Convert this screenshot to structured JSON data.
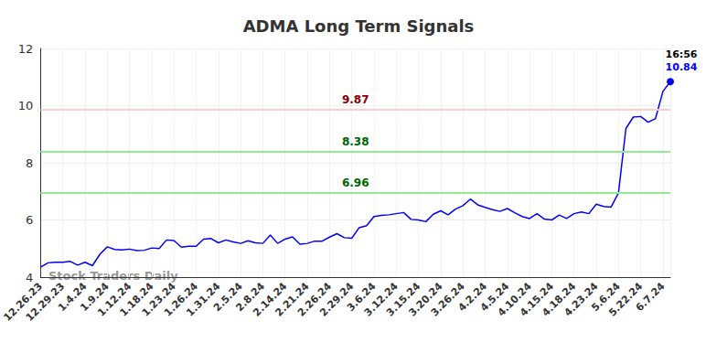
{
  "chart_data": {
    "type": "line",
    "title": "ADMA Long Term Signals",
    "watermark": "Stock Traders Daily",
    "last_point_time": "16:56",
    "categories": [
      "12.26.23",
      null,
      null,
      "12.29.23",
      null,
      null,
      "1.4.24",
      null,
      null,
      "1.9.24",
      null,
      null,
      "1.12.24",
      null,
      null,
      "1.18.24",
      null,
      null,
      "1.23.24",
      null,
      null,
      "1.26.24",
      null,
      null,
      "1.31.24",
      null,
      null,
      "2.5.24",
      null,
      null,
      "2.8.24",
      null,
      null,
      "2.14.24",
      null,
      null,
      "2.21.24",
      null,
      null,
      "2.26.24",
      null,
      null,
      "2.29.24",
      null,
      null,
      "3.6.24",
      null,
      null,
      "3.12.24",
      null,
      null,
      "3.15.24",
      null,
      null,
      "3.20.24",
      null,
      null,
      "3.26.24",
      null,
      null,
      "4.2.24",
      null,
      null,
      "4.5.24",
      null,
      null,
      "4.10.24",
      null,
      null,
      "4.15.24",
      null,
      null,
      "4.18.24",
      null,
      null,
      "4.23.24",
      null,
      null,
      "5.6.24",
      null,
      null,
      "5.22.24",
      null,
      null,
      "6.7.24",
      null
    ],
    "values": [
      4.35,
      4.5,
      4.52,
      4.52,
      4.55,
      4.42,
      4.52,
      4.4,
      4.8,
      5.06,
      4.97,
      4.95,
      4.98,
      4.93,
      4.94,
      5.02,
      5.0,
      5.3,
      5.28,
      5.05,
      5.08,
      5.08,
      5.33,
      5.35,
      5.2,
      5.3,
      5.23,
      5.18,
      5.27,
      5.2,
      5.18,
      5.47,
      5.18,
      5.33,
      5.41,
      5.15,
      5.18,
      5.26,
      5.26,
      5.4,
      5.52,
      5.38,
      5.36,
      5.73,
      5.8,
      6.12,
      6.16,
      6.18,
      6.22,
      6.26,
      6.02,
      6.0,
      5.94,
      6.2,
      6.32,
      6.18,
      6.38,
      6.5,
      6.73,
      6.53,
      6.44,
      6.36,
      6.3,
      6.4,
      6.25,
      6.12,
      6.05,
      6.22,
      6.03,
      6.0,
      6.17,
      6.05,
      6.22,
      6.28,
      6.22,
      6.55,
      6.47,
      6.45,
      6.95,
      9.2,
      9.6,
      9.62,
      9.42,
      9.55,
      10.5,
      10.84
    ],
    "color": "#0000ff",
    "ylim": [
      4,
      12
    ],
    "yticks": [
      4,
      6,
      8,
      10,
      12
    ],
    "grid": true,
    "levels": [
      {
        "value": 9.87,
        "color": "#8b0000"
      },
      {
        "value": 8.38,
        "color": "#006400"
      },
      {
        "value": 6.96,
        "color": "#006400"
      }
    ]
  }
}
